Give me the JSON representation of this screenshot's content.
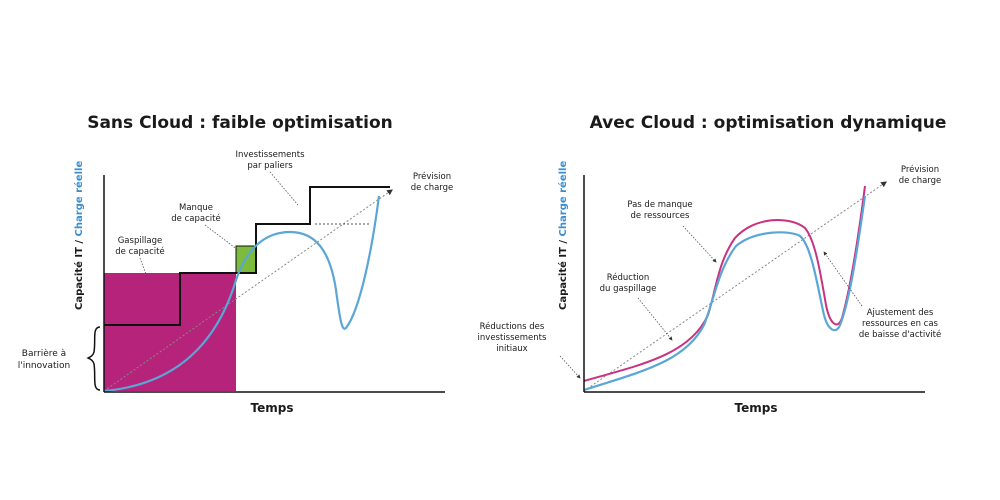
{
  "left": {
    "title": "Sans Cloud : faible optimisation",
    "x_label": "Temps",
    "y_label_part1": "Capacité IT / ",
    "y_label_part2": "Charge réelle",
    "annotations": {
      "investissements_1": "Investissements",
      "investissements_2": "par paliers",
      "prevision_1": "Prévision",
      "prevision_2": "de charge",
      "manque_1": "Manque",
      "manque_2": "de capacité",
      "gaspillage_1": "Gaspillage",
      "gaspillage_2": "de capacité",
      "barriere_1": "Barrière à",
      "barriere_2": "l'innovation"
    }
  },
  "right": {
    "title": "Avec Cloud : optimisation dynamique",
    "x_label": "Temps",
    "y_label_part1": "Capacité IT / ",
    "y_label_part2": "Charge réelle",
    "annotations": {
      "prevision_1": "Prévision",
      "prevision_2": "de charge",
      "pas_manque_1": "Pas de manque",
      "pas_manque_2": "de ressources",
      "reduction_1": "Réduction",
      "reduction_2": "du gaspillage",
      "reductions_inv_1": "Réductions des",
      "reductions_inv_2": "investissements",
      "reductions_inv_3": "initiaux",
      "ajustement_1": "Ajustement des",
      "ajustement_2": "ressources en cas",
      "ajustement_3": "de baisse d'activité"
    }
  },
  "colors": {
    "capacity_line": "#111111",
    "real_load_blue": "#5aa6d6",
    "cloud_capacity_magenta": "#c8327f",
    "waste_fill": "#b5247a",
    "shortage_fill": "#7dbb3c",
    "y_label_blue": "#3b8fd0"
  }
}
